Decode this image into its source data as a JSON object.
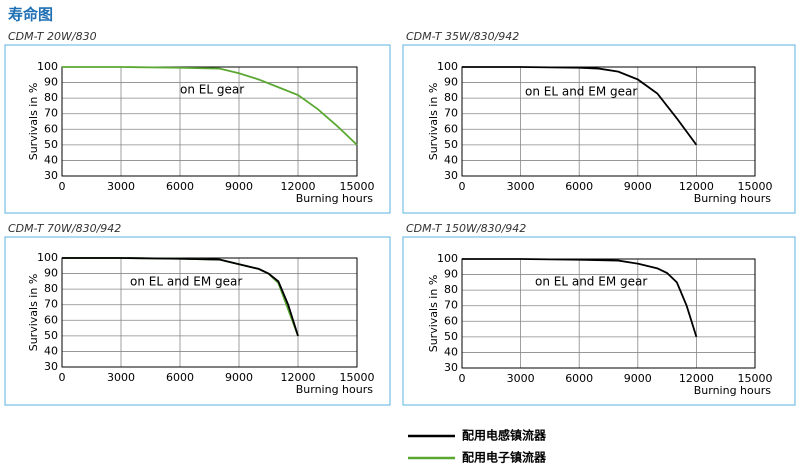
{
  "title": "寿命图",
  "chart_data": [
    {
      "type": "line",
      "subtitle": "CDM-T 20W/830",
      "ylabel": "Survivals in %",
      "xlabel": "Burning hours",
      "annotation": "on EL gear",
      "xlim": [
        0,
        15000
      ],
      "xticks": [
        0,
        3000,
        6000,
        9000,
        12000,
        15000
      ],
      "ylim": [
        30,
        100
      ],
      "yticks": [
        30,
        40,
        50,
        60,
        70,
        80,
        90,
        100
      ],
      "grid": true,
      "series": [
        {
          "color": "#5aa832",
          "x": [
            0,
            3000,
            6000,
            8000,
            9000,
            10000,
            11000,
            12000,
            13000,
            14000,
            15000
          ],
          "values": [
            100,
            100,
            99.5,
            99,
            96,
            92,
            87,
            82,
            73,
            62,
            50
          ]
        }
      ]
    },
    {
      "type": "line",
      "subtitle": "CDM-T 35W/830/942",
      "ylabel": "Survivals in %",
      "xlabel": "Burning hours",
      "annotation": "on EL and EM gear",
      "xlim": [
        0,
        15000
      ],
      "xticks": [
        0,
        3000,
        6000,
        9000,
        12000,
        15000
      ],
      "ylim": [
        30,
        100
      ],
      "yticks": [
        30,
        40,
        50,
        60,
        70,
        80,
        90,
        100
      ],
      "grid": true,
      "series": [
        {
          "color": "#000000",
          "x": [
            0,
            3000,
            6000,
            7000,
            8000,
            9000,
            10000,
            11000,
            12000
          ],
          "values": [
            100,
            100,
            99.5,
            99,
            97,
            92,
            83,
            67,
            50
          ]
        }
      ]
    },
    {
      "type": "line",
      "subtitle": "CDM-T 70W/830/942",
      "ylabel": "Survivals in %",
      "xlabel": "Burning hours",
      "annotation": "on EL and EM gear",
      "xlim": [
        0,
        15000
      ],
      "xticks": [
        0,
        3000,
        6000,
        9000,
        12000,
        15000
      ],
      "ylim": [
        30,
        100
      ],
      "yticks": [
        30,
        40,
        50,
        60,
        70,
        80,
        90,
        100
      ],
      "grid": true,
      "series": [
        {
          "color": "#5aa832",
          "x": [
            0,
            3000,
            6000,
            8000,
            9000,
            10000,
            10500,
            11000,
            11500,
            12000
          ],
          "values": [
            100,
            100,
            99.5,
            99,
            96,
            93,
            90,
            84,
            67,
            50
          ]
        },
        {
          "color": "#000000",
          "x": [
            0,
            3000,
            6000,
            8000,
            9000,
            10000,
            10500,
            11000,
            11500,
            12000
          ],
          "values": [
            100,
            100,
            99.5,
            99,
            96,
            93,
            90,
            85,
            70,
            50
          ]
        }
      ]
    },
    {
      "type": "line",
      "subtitle": "CDM-T 150W/830/942",
      "ylabel": "Survivals in %",
      "xlabel": "Burning hours",
      "annotation": "on EL and EM gear",
      "xlim": [
        0,
        15000
      ],
      "xticks": [
        0,
        3000,
        6000,
        9000,
        12000,
        15000
      ],
      "ylim": [
        30,
        100
      ],
      "yticks": [
        30,
        40,
        50,
        60,
        70,
        80,
        90,
        100
      ],
      "grid": true,
      "series": [
        {
          "color": "#000000",
          "x": [
            0,
            3000,
            6000,
            8000,
            9000,
            10000,
            10500,
            11000,
            11500,
            12000
          ],
          "values": [
            100,
            100,
            99.5,
            99,
            97,
            94,
            91,
            85,
            70,
            50
          ]
        }
      ]
    }
  ],
  "legend": [
    {
      "name": "配用电感镇流器",
      "color": "#000000"
    },
    {
      "name": "配用电子镇流器",
      "color": "#5aa832"
    }
  ]
}
